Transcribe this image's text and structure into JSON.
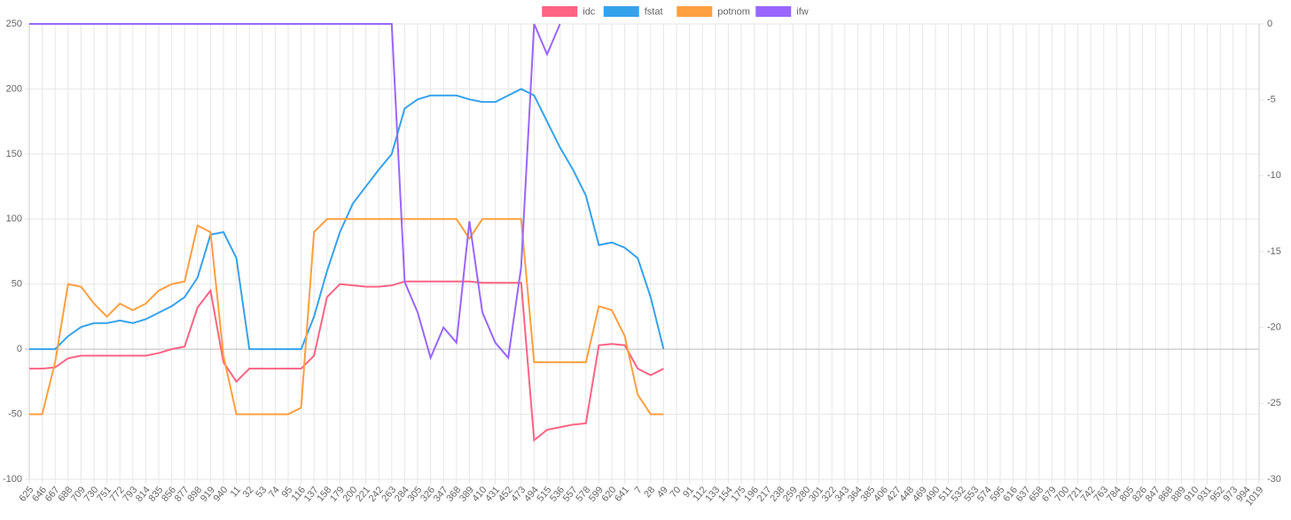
{
  "chart_data": {
    "type": "line",
    "categories": [
      "625",
      "646",
      "667",
      "688",
      "709",
      "730",
      "751",
      "772",
      "793",
      "814",
      "835",
      "856",
      "877",
      "898",
      "919",
      "940",
      "11",
      "32",
      "53",
      "74",
      "95",
      "116",
      "137",
      "158",
      "179",
      "200",
      "221",
      "242",
      "263",
      "284",
      "305",
      "326",
      "347",
      "368",
      "389",
      "410",
      "431",
      "452",
      "473",
      "494",
      "515",
      "536",
      "557",
      "578",
      "599",
      "620",
      "641",
      "7",
      "28",
      "49",
      "70",
      "91",
      "112",
      "133",
      "154",
      "175",
      "196",
      "217",
      "238",
      "259",
      "280",
      "301",
      "322",
      "343",
      "364",
      "385",
      "406",
      "427",
      "448",
      "469",
      "490",
      "511",
      "532",
      "553",
      "574",
      "595",
      "616",
      "637",
      "658",
      "679",
      "700",
      "721",
      "742",
      "763",
      "784",
      "805",
      "826",
      "847",
      "868",
      "889",
      "910",
      "931",
      "952",
      "973",
      "994",
      "1019"
    ],
    "series": [
      {
        "name": "idc",
        "color": "#ff6384",
        "values": [
          -15,
          -15,
          -14,
          -7,
          -5,
          -5,
          -5,
          -5,
          -5,
          -5,
          -3,
          0,
          2,
          32,
          45,
          -10,
          -25,
          -15,
          -15,
          -15,
          -15,
          -15,
          -5,
          40,
          50,
          49,
          48,
          48,
          49,
          52,
          52,
          52,
          52,
          52,
          52,
          51,
          51,
          51,
          51,
          -70,
          -62,
          -60,
          -58,
          -57,
          3,
          4,
          3,
          -15,
          -20,
          -15,
          null,
          null,
          null,
          null,
          null,
          null,
          null,
          null,
          null,
          null,
          null,
          null,
          null,
          null,
          null,
          null,
          null,
          null,
          null,
          null,
          null,
          null,
          null,
          null,
          null,
          null,
          null,
          null,
          null,
          null,
          null,
          null,
          null,
          null,
          null,
          null,
          null,
          null,
          null,
          null,
          null,
          null,
          null,
          null,
          null,
          null
        ]
      },
      {
        "name": "fstat",
        "color": "#36a2eb",
        "values": [
          0,
          0,
          0,
          10,
          17,
          20,
          20,
          22,
          20,
          23,
          28,
          33,
          40,
          55,
          88,
          90,
          70,
          0,
          0,
          0,
          0,
          0,
          25,
          60,
          90,
          112,
          125,
          138,
          150,
          185,
          192,
          195,
          195,
          195,
          192,
          190,
          190,
          195,
          200,
          195,
          175,
          155,
          138,
          118,
          80,
          82,
          78,
          70,
          40,
          0,
          null,
          null,
          null,
          null,
          null,
          null,
          null,
          null,
          null,
          null,
          null,
          null,
          null,
          null,
          null,
          null,
          null,
          null,
          null,
          null,
          null,
          null,
          null,
          null,
          null,
          null,
          null,
          null,
          null,
          null,
          null,
          null,
          null,
          null,
          null,
          null,
          null,
          null,
          null,
          null,
          null,
          null,
          null,
          null,
          null,
          null
        ]
      },
      {
        "name": "potnom",
        "color": "#ff9f40",
        "values": [
          -50,
          -50,
          -10,
          50,
          48,
          35,
          25,
          35,
          30,
          35,
          45,
          50,
          52,
          95,
          90,
          -5,
          -50,
          -50,
          -50,
          -50,
          -50,
          -45,
          90,
          100,
          100,
          100,
          100,
          100,
          100,
          100,
          100,
          100,
          100,
          100,
          85,
          100,
          100,
          100,
          100,
          -10,
          -10,
          -10,
          -10,
          -10,
          33,
          30,
          10,
          -35,
          -50,
          -50,
          null,
          null,
          null,
          null,
          null,
          null,
          null,
          null,
          null,
          null,
          null,
          null,
          null,
          null,
          null,
          null,
          null,
          null,
          null,
          null,
          null,
          null,
          null,
          null,
          null,
          null,
          null,
          null,
          null,
          null,
          null,
          null,
          null,
          null,
          null,
          null,
          null,
          null,
          null,
          null,
          null,
          null,
          null,
          null,
          null,
          null
        ]
      },
      {
        "name": "ifw",
        "color": "#9966ff",
        "axis": "y2",
        "values": [
          0,
          0,
          0,
          0,
          0,
          0,
          0,
          0,
          0,
          0,
          0,
          0,
          0,
          0,
          0,
          0,
          0,
          0,
          0,
          0,
          0,
          0,
          0,
          0,
          0,
          0,
          0,
          0,
          0,
          -17,
          -19,
          -22,
          -20,
          -21,
          -13,
          -19,
          -21,
          -22,
          -16,
          0,
          -2,
          0,
          null,
          null,
          null,
          null,
          null,
          null,
          null,
          null,
          null,
          null,
          null,
          null,
          null,
          null,
          null,
          null,
          null,
          null,
          null,
          null,
          null,
          null,
          null,
          null,
          null,
          null,
          null,
          null,
          null,
          null,
          null,
          null,
          null,
          null,
          null,
          null,
          null,
          null,
          null,
          null,
          null,
          null,
          null,
          null,
          null,
          null,
          null,
          null,
          null,
          null,
          null,
          null,
          null,
          null
        ]
      }
    ],
    "ylim": [
      -100,
      250
    ],
    "yticks": [
      -100,
      -50,
      0,
      50,
      100,
      150,
      200,
      250
    ],
    "y2lim": [
      -30,
      0
    ],
    "y2ticks": [
      -30,
      -25,
      -20,
      -15,
      -10,
      -5,
      0
    ],
    "grid": true,
    "legend": "top"
  }
}
